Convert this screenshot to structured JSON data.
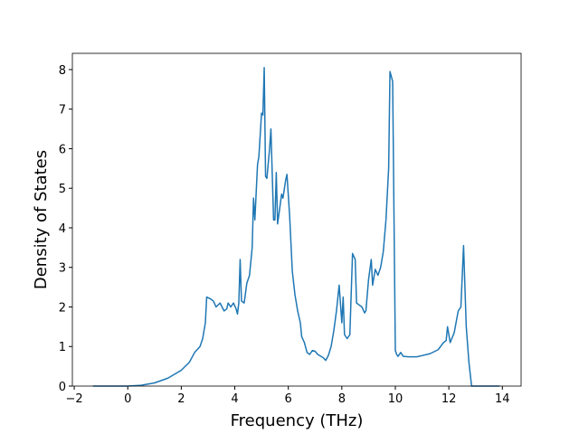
{
  "chart_data": {
    "type": "line",
    "xlabel": "Frequency (THz)",
    "ylabel": "Density of States",
    "xlim": [
      -2.07,
      14.7
    ],
    "ylim": [
      0,
      8.41
    ],
    "xticks": [
      {
        "value": -2,
        "label": "−2"
      },
      0,
      2,
      4,
      6,
      8,
      10,
      12,
      14
    ],
    "yticks": [
      0,
      1,
      2,
      3,
      4,
      5,
      6,
      7,
      8
    ],
    "x": [
      -1.3,
      0,
      0.5,
      1,
      1.5,
      2,
      2.3,
      2.5,
      2.7,
      2.8,
      2.9,
      2.95,
      3.1,
      3.2,
      3.3,
      3.45,
      3.6,
      3.7,
      3.75,
      3.85,
      3.95,
      4.05,
      4.1,
      4.15,
      4.2,
      4.25,
      4.35,
      4.45,
      4.55,
      4.65,
      4.7,
      4.75,
      4.85,
      4.9,
      5.0,
      5.05,
      5.1,
      5.15,
      5.2,
      5.3,
      5.35,
      5.45,
      5.5,
      5.55,
      5.6,
      5.7,
      5.75,
      5.8,
      5.9,
      5.95,
      6.05,
      6.15,
      6.25,
      6.35,
      6.45,
      6.5,
      6.6,
      6.7,
      6.8,
      6.9,
      7.0,
      7.1,
      7.2,
      7.3,
      7.4,
      7.5,
      7.6,
      7.7,
      7.8,
      7.9,
      8.0,
      8.05,
      8.1,
      8.2,
      8.3,
      8.4,
      8.5,
      8.55,
      8.65,
      8.75,
      8.85,
      8.9,
      9.0,
      9.1,
      9.15,
      9.25,
      9.35,
      9.45,
      9.55,
      9.65,
      9.75,
      9.8,
      9.9,
      10.0,
      10.05,
      10.1,
      10.2,
      10.3,
      10.5,
      10.8,
      11.0,
      11.3,
      11.6,
      11.8,
      11.9,
      11.95,
      12.05,
      12.2,
      12.35,
      12.45,
      12.55,
      12.65,
      12.75,
      12.85,
      13.9
    ],
    "series": [
      {
        "color": "#1f77b4",
        "values": [
          0,
          0,
          0.02,
          0.08,
          0.2,
          0.4,
          0.6,
          0.85,
          1.0,
          1.2,
          1.6,
          2.25,
          2.2,
          2.15,
          2.0,
          2.1,
          1.9,
          1.95,
          2.1,
          2.0,
          2.1,
          1.95,
          1.82,
          2.1,
          3.2,
          2.15,
          2.1,
          2.6,
          2.8,
          3.5,
          4.75,
          4.2,
          5.6,
          5.8,
          6.9,
          6.85,
          8.05,
          5.3,
          5.25,
          6.0,
          6.5,
          4.2,
          4.2,
          5.4,
          4.1,
          4.6,
          4.85,
          4.75,
          5.2,
          5.35,
          4.3,
          2.9,
          2.3,
          1.9,
          1.6,
          1.25,
          1.1,
          0.85,
          0.8,
          0.9,
          0.88,
          0.8,
          0.76,
          0.72,
          0.65,
          0.78,
          1.0,
          1.4,
          1.9,
          2.55,
          1.6,
          2.25,
          1.3,
          1.2,
          1.3,
          3.35,
          3.2,
          2.1,
          2.05,
          2.0,
          1.85,
          1.9,
          2.7,
          3.2,
          2.55,
          2.95,
          2.8,
          3.0,
          3.4,
          4.2,
          5.5,
          7.95,
          7.7,
          0.9,
          0.8,
          0.75,
          0.85,
          0.75,
          0.74,
          0.74,
          0.77,
          0.82,
          0.92,
          1.1,
          1.15,
          1.5,
          1.1,
          1.35,
          1.9,
          2.0,
          3.55,
          1.5,
          0.6,
          0,
          0
        ]
      }
    ]
  }
}
